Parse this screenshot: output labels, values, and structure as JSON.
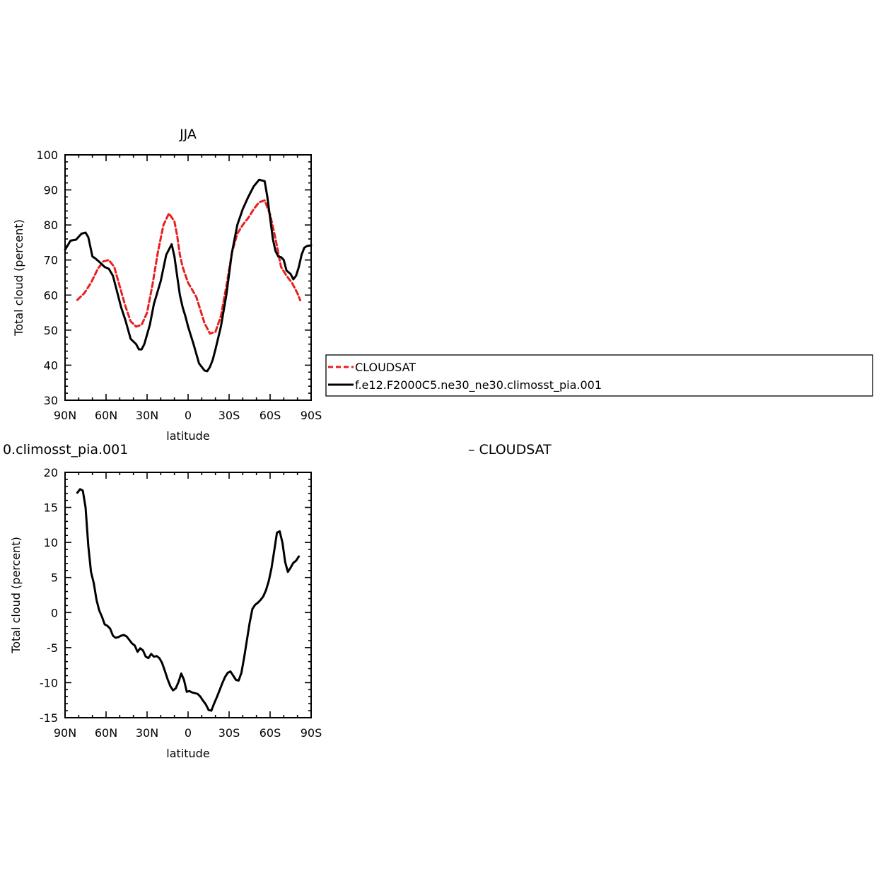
{
  "chart_data": [
    {
      "type": "line",
      "title": "JJA",
      "xlabel": "latitude",
      "ylabel": "Total cloud (percent)",
      "xlim": [
        90,
        -90
      ],
      "ylim": [
        30,
        100
      ],
      "yticks": [
        30,
        40,
        50,
        60,
        70,
        80,
        90,
        100
      ],
      "xticks": [
        {
          "value": 90,
          "label": "90N"
        },
        {
          "value": 60,
          "label": "60N"
        },
        {
          "value": 30,
          "label": "30N"
        },
        {
          "value": 0,
          "label": "0"
        },
        {
          "value": -30,
          "label": "30S"
        },
        {
          "value": -60,
          "label": "60S"
        },
        {
          "value": -90,
          "label": "90S"
        }
      ],
      "grid": false,
      "legend_position": "right",
      "series": [
        {
          "name": "CLOUDSAT",
          "color": "#e8201f",
          "dash": "dashed",
          "x": [
            81,
            76,
            71,
            66,
            62,
            58,
            54,
            50,
            46,
            42,
            38,
            34,
            30,
            26,
            22,
            18,
            14,
            10,
            8,
            6,
            4,
            0,
            -6,
            -12,
            -16,
            -20,
            -24,
            -28,
            -32,
            -36,
            -40,
            -44,
            -48,
            -52,
            -56,
            -60,
            -64,
            -68,
            -72,
            -76,
            -80,
            -82
          ],
          "values": [
            58.6,
            60.5,
            63.5,
            67.5,
            69.6,
            70.0,
            68.0,
            62.5,
            57.0,
            52.5,
            51.0,
            51.5,
            55.0,
            63.0,
            72.5,
            80.0,
            83.3,
            81.0,
            77.0,
            71.5,
            68.0,
            63.5,
            59.5,
            52.0,
            49.0,
            49.5,
            54.0,
            62.5,
            72.0,
            77.5,
            80.0,
            82.0,
            84.5,
            86.5,
            87.0,
            83.0,
            76.0,
            68.0,
            65.5,
            63.5,
            60.5,
            58.5
          ]
        },
        {
          "name": "f.e12.F2000C5.ne30_ne30.climosst_pia.001",
          "color": "#000000",
          "dash": "solid",
          "x": [
            90,
            86,
            82,
            78,
            75,
            73,
            70,
            68,
            65,
            61,
            58,
            55,
            52,
            49,
            46,
            42,
            38,
            36,
            34,
            32,
            28,
            25,
            20,
            16,
            12,
            10,
            8,
            6,
            4,
            2,
            0,
            -4,
            -8,
            -12,
            -14,
            -16,
            -18,
            -20,
            -24,
            -28,
            -32,
            -36,
            -40,
            -44,
            -48,
            -52,
            -56,
            -58,
            -60,
            -62,
            -64,
            -66,
            -68,
            -70,
            -72,
            -75,
            -77,
            -79,
            -81,
            -83,
            -85,
            -87,
            -90
          ],
          "values": [
            72.9,
            75.5,
            75.8,
            77.5,
            77.8,
            76.5,
            71.0,
            70.5,
            69.5,
            68.0,
            67.5,
            65.5,
            61.0,
            56.5,
            53.0,
            47.5,
            46.0,
            44.5,
            44.5,
            46.0,
            51.5,
            57.5,
            64.0,
            71.5,
            74.5,
            71.0,
            65.5,
            60.0,
            56.5,
            54.0,
            51.0,
            46.0,
            40.5,
            38.5,
            38.3,
            39.5,
            41.5,
            44.5,
            51.0,
            60.0,
            72.0,
            80.0,
            84.5,
            88.0,
            91.0,
            92.9,
            92.5,
            88.0,
            82.0,
            76.0,
            72.5,
            71.0,
            70.8,
            70.0,
            67.0,
            66.0,
            64.5,
            65.5,
            68.0,
            71.5,
            73.5,
            74.0,
            74.2
          ]
        }
      ]
    },
    {
      "type": "line",
      "title": "0.climosst_pia.001",
      "subtitle_right": "– CLOUDSAT",
      "xlabel": "latitude",
      "ylabel": "Total cloud (percent)",
      "xlim": [
        90,
        -90
      ],
      "ylim": [
        -15,
        20
      ],
      "yticks": [
        -15,
        -10,
        -5,
        0,
        5,
        10,
        15,
        20
      ],
      "xticks": [
        {
          "value": 90,
          "label": "90N"
        },
        {
          "value": 60,
          "label": "60N"
        },
        {
          "value": 30,
          "label": "30N"
        },
        {
          "value": 0,
          "label": "0"
        },
        {
          "value": -30,
          "label": "30S"
        },
        {
          "value": -60,
          "label": "60S"
        },
        {
          "value": -90,
          "label": "90S"
        }
      ],
      "grid": false,
      "series": [
        {
          "color": "#000000",
          "dash": "solid",
          "x": [
            81,
            79,
            77,
            75,
            73,
            71,
            69,
            67,
            65,
            63,
            61,
            59,
            57,
            55,
            53,
            51,
            49,
            47,
            45,
            43,
            41,
            39,
            37,
            35,
            33,
            31,
            29,
            27,
            25,
            23,
            21,
            19,
            17,
            15,
            13,
            11,
            9,
            7,
            5,
            3,
            1,
            -1,
            -3,
            -5,
            -7,
            -9,
            -11,
            -13,
            -15,
            -17,
            -19,
            -21,
            -23,
            -25,
            -27,
            -29,
            -31,
            -33,
            -35,
            -37,
            -39,
            -41,
            -43,
            -45,
            -47,
            -49,
            -51,
            -53,
            -55,
            -57,
            -59,
            -61,
            -63,
            -65,
            -67,
            -69,
            -71,
            -73,
            -75,
            -77,
            -79,
            -81
          ],
          "values": [
            17.1,
            17.6,
            17.4,
            15.0,
            9.5,
            5.8,
            4.2,
            1.8,
            0.3,
            -0.6,
            -1.7,
            -1.9,
            -2.3,
            -3.3,
            -3.6,
            -3.5,
            -3.3,
            -3.2,
            -3.4,
            -3.9,
            -4.4,
            -4.7,
            -5.6,
            -5.1,
            -5.4,
            -6.3,
            -6.5,
            -5.9,
            -6.3,
            -6.2,
            -6.5,
            -7.2,
            -8.3,
            -9.5,
            -10.5,
            -11.1,
            -10.8,
            -9.9,
            -8.7,
            -9.6,
            -11.3,
            -11.2,
            -11.4,
            -11.5,
            -11.6,
            -12.0,
            -12.6,
            -13.1,
            -13.9,
            -14.0,
            -13.0,
            -12.1,
            -11.1,
            -10.1,
            -9.2,
            -8.6,
            -8.4,
            -9.0,
            -9.6,
            -9.7,
            -8.6,
            -6.4,
            -4.0,
            -1.5,
            0.5,
            1.1,
            1.4,
            1.8,
            2.3,
            3.2,
            4.5,
            6.3,
            8.8,
            11.4,
            11.6,
            10.0,
            7.2,
            5.8,
            6.4,
            7.1,
            7.4,
            8.0
          ]
        }
      ]
    }
  ]
}
